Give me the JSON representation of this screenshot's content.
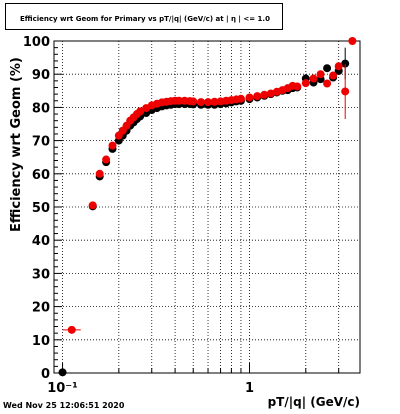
{
  "chart_data": {
    "type": "scatter",
    "title": "Efficiency wrt Geom for Primary vs pT/|q| (GeV/c) at | η | <= 1.0",
    "xlabel": "pT/|q| (GeV/c)",
    "ylabel": "Efficiency wrt Geom (%)",
    "xscale": "log",
    "xlim": [
      0.09,
      3.9
    ],
    "ylim": [
      0,
      100
    ],
    "x_tick_labels": [
      "10⁻¹",
      "1"
    ],
    "y_ticks": [
      0,
      10,
      20,
      30,
      40,
      50,
      60,
      70,
      80,
      90,
      100
    ],
    "grid": true,
    "footer": "Wed Nov 25 12:06:51 2020",
    "series": [
      {
        "color": "#000000",
        "points": [
          {
            "x": 0.1,
            "y": 0.2
          },
          {
            "x": 0.145,
            "y": 50.2
          },
          {
            "x": 0.158,
            "y": 59.2
          },
          {
            "x": 0.171,
            "y": 63.5
          },
          {
            "x": 0.185,
            "y": 67.5
          },
          {
            "x": 0.2,
            "y": 70
          },
          {
            "x": 0.21,
            "y": 71.5
          },
          {
            "x": 0.22,
            "y": 73
          },
          {
            "x": 0.23,
            "y": 74.5
          },
          {
            "x": 0.24,
            "y": 75.5
          },
          {
            "x": 0.25,
            "y": 76.5
          },
          {
            "x": 0.26,
            "y": 77.3
          },
          {
            "x": 0.28,
            "y": 78.3
          },
          {
            "x": 0.3,
            "y": 79.2
          },
          {
            "x": 0.32,
            "y": 79.8
          },
          {
            "x": 0.34,
            "y": 80.3
          },
          {
            "x": 0.36,
            "y": 80.6
          },
          {
            "x": 0.38,
            "y": 80.8
          },
          {
            "x": 0.4,
            "y": 81
          },
          {
            "x": 0.42,
            "y": 81
          },
          {
            "x": 0.45,
            "y": 81
          },
          {
            "x": 0.48,
            "y": 81
          },
          {
            "x": 0.5,
            "y": 80.9
          },
          {
            "x": 0.55,
            "y": 80.8
          },
          {
            "x": 0.6,
            "y": 80.8
          },
          {
            "x": 0.65,
            "y": 80.8
          },
          {
            "x": 0.7,
            "y": 81
          },
          {
            "x": 0.75,
            "y": 81.2
          },
          {
            "x": 0.8,
            "y": 81.5
          },
          {
            "x": 0.85,
            "y": 81.8
          },
          {
            "x": 0.9,
            "y": 82
          },
          {
            "x": 1.0,
            "y": 82.5
          },
          {
            "x": 1.1,
            "y": 83
          },
          {
            "x": 1.2,
            "y": 83.5
          },
          {
            "x": 1.3,
            "y": 84
          },
          {
            "x": 1.4,
            "y": 84.5
          },
          {
            "x": 1.5,
            "y": 85
          },
          {
            "x": 1.6,
            "y": 85.2
          },
          {
            "x": 1.7,
            "y": 85.8
          },
          {
            "x": 1.8,
            "y": 86
          },
          {
            "x": 2.0,
            "y": 88.7
          },
          {
            "x": 2.2,
            "y": 87.5
          },
          {
            "x": 2.4,
            "y": 88.5
          },
          {
            "x": 2.6,
            "y": 91.8
          },
          {
            "x": 2.8,
            "y": 89
          },
          {
            "x": 3.0,
            "y": 91
          },
          {
            "x": 3.25,
            "y": 93.2
          }
        ]
      },
      {
        "color": "#ee0000",
        "points": [
          {
            "x": 0.112,
            "y": 13
          },
          {
            "x": 0.145,
            "y": 50.5
          },
          {
            "x": 0.158,
            "y": 60
          },
          {
            "x": 0.171,
            "y": 64.3
          },
          {
            "x": 0.185,
            "y": 68.5
          },
          {
            "x": 0.2,
            "y": 71.5
          },
          {
            "x": 0.21,
            "y": 73
          },
          {
            "x": 0.22,
            "y": 74.5
          },
          {
            "x": 0.23,
            "y": 76
          },
          {
            "x": 0.24,
            "y": 77
          },
          {
            "x": 0.25,
            "y": 78
          },
          {
            "x": 0.26,
            "y": 78.8
          },
          {
            "x": 0.28,
            "y": 79.8
          },
          {
            "x": 0.3,
            "y": 80.6
          },
          {
            "x": 0.32,
            "y": 81.1
          },
          {
            "x": 0.34,
            "y": 81.5
          },
          {
            "x": 0.36,
            "y": 81.7
          },
          {
            "x": 0.38,
            "y": 81.9
          },
          {
            "x": 0.4,
            "y": 82
          },
          {
            "x": 0.42,
            "y": 82
          },
          {
            "x": 0.45,
            "y": 82
          },
          {
            "x": 0.48,
            "y": 81.9
          },
          {
            "x": 0.5,
            "y": 81.8
          },
          {
            "x": 0.55,
            "y": 81.6
          },
          {
            "x": 0.6,
            "y": 81.6
          },
          {
            "x": 0.65,
            "y": 81.7
          },
          {
            "x": 0.7,
            "y": 81.8
          },
          {
            "x": 0.75,
            "y": 82
          },
          {
            "x": 0.8,
            "y": 82.2
          },
          {
            "x": 0.85,
            "y": 82.4
          },
          {
            "x": 0.9,
            "y": 82.6
          },
          {
            "x": 1.0,
            "y": 83
          },
          {
            "x": 1.1,
            "y": 83.4
          },
          {
            "x": 1.2,
            "y": 83.8
          },
          {
            "x": 1.3,
            "y": 84.2
          },
          {
            "x": 1.4,
            "y": 84.7
          },
          {
            "x": 1.5,
            "y": 85.2
          },
          {
            "x": 1.6,
            "y": 85.8
          },
          {
            "x": 1.7,
            "y": 86.5
          },
          {
            "x": 1.8,
            "y": 86.3
          },
          {
            "x": 2.0,
            "y": 87.3
          },
          {
            "x": 2.2,
            "y": 88.7
          },
          {
            "x": 2.4,
            "y": 90
          },
          {
            "x": 2.6,
            "y": 87.2
          },
          {
            "x": 2.8,
            "y": 89.6
          },
          {
            "x": 3.0,
            "y": 92.4
          },
          {
            "x": 3.25,
            "y": 84.8
          },
          {
            "x": 3.55,
            "y": 100
          }
        ]
      }
    ]
  }
}
